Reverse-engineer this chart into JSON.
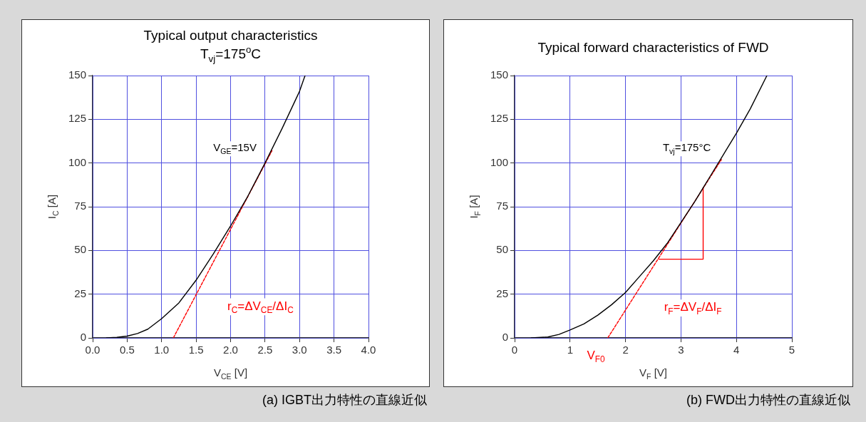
{
  "chart_data": [
    {
      "type": "line",
      "title": "Typical output characteristics",
      "subtitle": "T$_{vj}$=175$^{o}$C",
      "xlabel": "V$_{CE}$ [V]",
      "ylabel": "I$_{C}$ [A]",
      "xlim": [
        0,
        4
      ],
      "xticks": [
        {
          "value": 0,
          "label": "0.0"
        },
        {
          "value": 0.5,
          "label": "0.5"
        },
        {
          "value": 1,
          "label": "1.0"
        },
        {
          "value": 1.5,
          "label": "1.5"
        },
        {
          "value": 2,
          "label": "2.0"
        },
        {
          "value": 2.5,
          "label": "2.5"
        },
        {
          "value": 3,
          "label": "3.0"
        },
        {
          "value": 3.5,
          "label": "3.5"
        },
        {
          "value": 4,
          "label": "4.0"
        }
      ],
      "ylim": [
        0,
        150
      ],
      "yticks": [
        0,
        25,
        50,
        75,
        100,
        125,
        150
      ],
      "grid": true,
      "series": [
        {
          "name": "V$_{GE}$=15V",
          "color": "#000000",
          "x": [
            0.2,
            0.35,
            0.5,
            0.65,
            0.8,
            1.0,
            1.25,
            1.5,
            1.75,
            2.0,
            2.25,
            2.5,
            2.75,
            3.0,
            3.08
          ],
          "values": [
            0,
            0.3,
            1,
            2.5,
            5,
            11,
            20,
            33,
            48,
            64,
            81,
            100,
            120,
            141,
            150
          ]
        },
        {
          "name": "r$_{C}$=ΔV$_{CE}$/ΔI$_{C}$",
          "color": "#ff0000",
          "line_style": "dashed",
          "x": [
            1.17,
            2.6
          ],
          "values": [
            0,
            107
          ]
        }
      ],
      "annotations": [
        "(a) IGBT出力特性の直線近似"
      ]
    },
    {
      "type": "line",
      "title": "Typical forward characteristics of FWD",
      "xlabel": "V$_{F}$ [V]",
      "ylabel": "I$_{F}$ [A]",
      "xlim": [
        0,
        5
      ],
      "xticks": [
        0,
        1,
        2,
        3,
        4,
        5
      ],
      "ylim": [
        0,
        150
      ],
      "yticks": [
        0,
        25,
        50,
        75,
        100,
        125,
        150
      ],
      "grid": true,
      "series": [
        {
          "name": "T$_{vj}$=175°C",
          "color": "#000000",
          "x": [
            0.3,
            0.6,
            0.8,
            1.0,
            1.25,
            1.5,
            1.75,
            2.0,
            2.25,
            2.5,
            2.75,
            3.0,
            3.25,
            3.5,
            3.75,
            4.0,
            4.25,
            4.55
          ],
          "values": [
            0,
            0.5,
            2,
            4.5,
            8,
            13,
            19,
            26,
            35,
            44,
            54,
            66,
            78,
            91,
            104,
            117,
            131,
            150
          ]
        },
        {
          "name": "r$_{F}$=ΔV$_{F}$/ΔI$_{F}$",
          "color": "#ff0000",
          "line_style": "dashed",
          "x": [
            1.68,
            3.73
          ],
          "values": [
            0,
            102
          ]
        },
        {
          "color": "#ff0000",
          "x": [
            2.6,
            3.4,
            3.4
          ],
          "values": [
            45,
            45,
            86
          ]
        }
      ],
      "annotations": [
        {
          "text": "V$_{F0}$",
          "x": 1.68,
          "y": 0
        },
        "(b) FWD出力特性の直線近似"
      ]
    }
  ]
}
